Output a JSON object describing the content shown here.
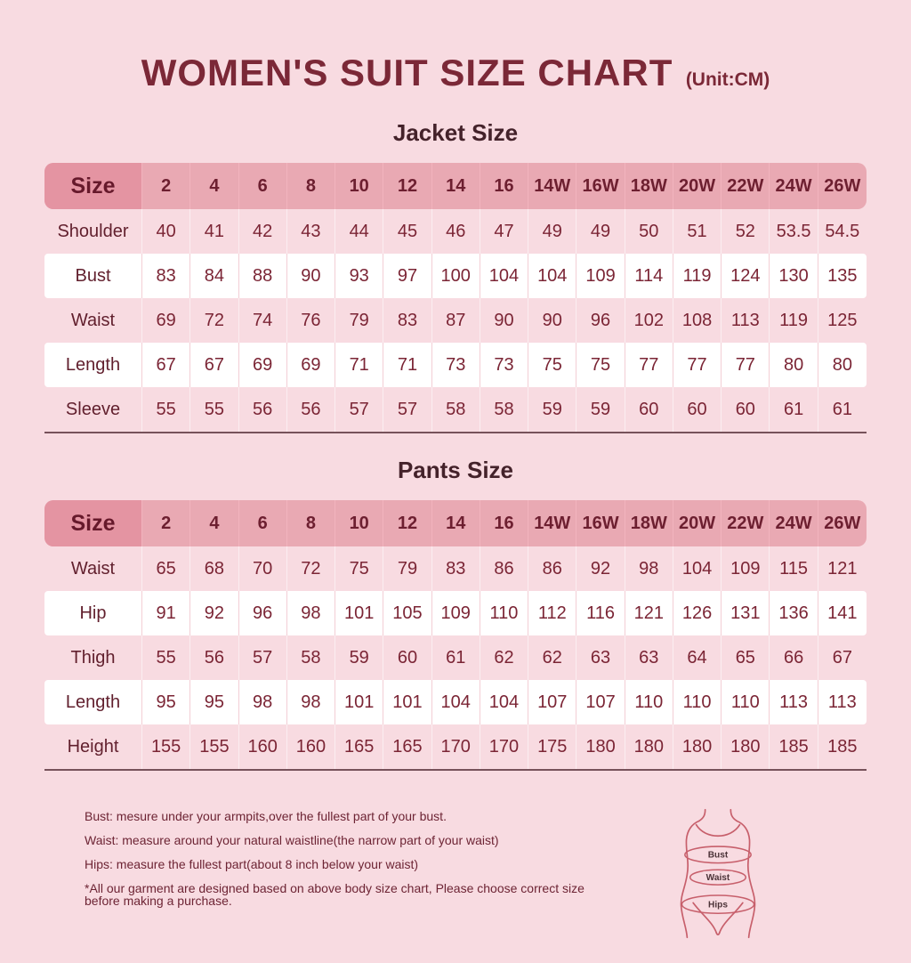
{
  "page": {
    "title": "WOMEN'S SUIT SIZE CHART",
    "unit": "(Unit:CM)"
  },
  "colors": {
    "background": "#f8dbe1",
    "header_row": "#e9a9b3",
    "size_cell": "#e494a2",
    "header_text": "#6d1f30",
    "value_text": "#7b2535",
    "title_text": "#7b2837",
    "section_heading_text": "#44222a",
    "white_row": "#ffffff",
    "table_bottom_border": "#77525a",
    "figure_line": "#c75f6b"
  },
  "chart_data": [
    {
      "type": "table",
      "title": "Jacket Size",
      "columns": [
        "Size",
        "2",
        "4",
        "6",
        "8",
        "10",
        "12",
        "14",
        "16",
        "14W",
        "16W",
        "18W",
        "20W",
        "22W",
        "24W",
        "26W"
      ],
      "rows": [
        [
          "Shoulder",
          "40",
          "41",
          "42",
          "43",
          "44",
          "45",
          "46",
          "47",
          "49",
          "49",
          "50",
          "51",
          "52",
          "53.5",
          "54.5"
        ],
        [
          "Bust",
          "83",
          "84",
          "88",
          "90",
          "93",
          "97",
          "100",
          "104",
          "104",
          "109",
          "114",
          "119",
          "124",
          "130",
          "135"
        ],
        [
          "Waist",
          "69",
          "72",
          "74",
          "76",
          "79",
          "83",
          "87",
          "90",
          "90",
          "96",
          "102",
          "108",
          "113",
          "119",
          "125"
        ],
        [
          "Length",
          "67",
          "67",
          "69",
          "69",
          "71",
          "71",
          "73",
          "73",
          "75",
          "75",
          "77",
          "77",
          "77",
          "80",
          "80"
        ],
        [
          "Sleeve",
          "55",
          "55",
          "56",
          "56",
          "57",
          "57",
          "58",
          "58",
          "59",
          "59",
          "60",
          "60",
          "60",
          "61",
          "61"
        ]
      ]
    },
    {
      "type": "table",
      "title": "Pants Size",
      "columns": [
        "Size",
        "2",
        "4",
        "6",
        "8",
        "10",
        "12",
        "14",
        "16",
        "14W",
        "16W",
        "18W",
        "20W",
        "22W",
        "24W",
        "26W"
      ],
      "rows": [
        [
          "Waist",
          "65",
          "68",
          "70",
          "72",
          "75",
          "79",
          "83",
          "86",
          "86",
          "92",
          "98",
          "104",
          "109",
          "115",
          "121"
        ],
        [
          "Hip",
          "91",
          "92",
          "96",
          "98",
          "101",
          "105",
          "109",
          "110",
          "112",
          "116",
          "121",
          "126",
          "131",
          "136",
          "141"
        ],
        [
          "Thigh",
          "55",
          "56",
          "57",
          "58",
          "59",
          "60",
          "61",
          "62",
          "62",
          "63",
          "63",
          "64",
          "65",
          "66",
          "67"
        ],
        [
          "Length",
          "95",
          "95",
          "98",
          "98",
          "101",
          "101",
          "104",
          "104",
          "107",
          "107",
          "110",
          "110",
          "110",
          "113",
          "113"
        ],
        [
          "Height",
          "155",
          "155",
          "160",
          "160",
          "165",
          "165",
          "170",
          "170",
          "175",
          "180",
          "180",
          "180",
          "180",
          "185",
          "185"
        ]
      ]
    }
  ],
  "notes": [
    "Bust: mesure under your armpits,over the fullest part of your bust.",
    "Waist: measure around your natural waistline(the narrow part of your waist)",
    "Hips: measure the fullest part(about 8 inch below your waist)",
    "*All our garment are designed based on above body size chart, Please choose correct size before making a purchase."
  ],
  "figure": {
    "bust_label": "Bust",
    "waist_label": "Waist",
    "hips_label": "Hips"
  }
}
